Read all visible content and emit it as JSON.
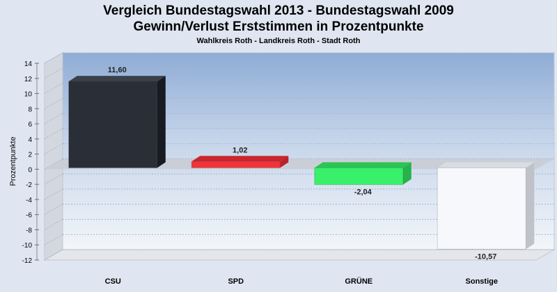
{
  "chart_data": {
    "type": "bar",
    "title": "Vergleich Bundestagswahl 2013  - Bundestagswahl 2009",
    "title2": "Gewinn/Verlust Erststimmen in Prozentpunkte",
    "subtitle": "Wahlkreis Roth - Landkreis Roth - Stadt Roth",
    "ylabel": "Prozentpunkte",
    "xlabel": "",
    "categories": [
      "CSU",
      "SPD",
      "GRÜNE",
      "Sonstige"
    ],
    "values": [
      11.6,
      1.02,
      -2.04,
      -10.57
    ],
    "value_labels": [
      "11,60",
      "1,02",
      "-2,04",
      "-10,57"
    ],
    "colors": [
      "#2a2e36",
      "#f0343a",
      "#38f06a",
      "#f6f8fb"
    ],
    "side_colors": [
      "#181b22",
      "#b8232a",
      "#27b24c",
      "#bfc2c8"
    ],
    "top_colors": [
      "#3b414b",
      "#c9262d",
      "#2cc454",
      "#d9dce2"
    ],
    "ylim": [
      -12,
      14
    ],
    "yticks": [
      14,
      12,
      10,
      8,
      6,
      4,
      2,
      0,
      -2,
      -4,
      -6,
      -8,
      -10,
      -12
    ],
    "grid": true,
    "three_d": true
  }
}
